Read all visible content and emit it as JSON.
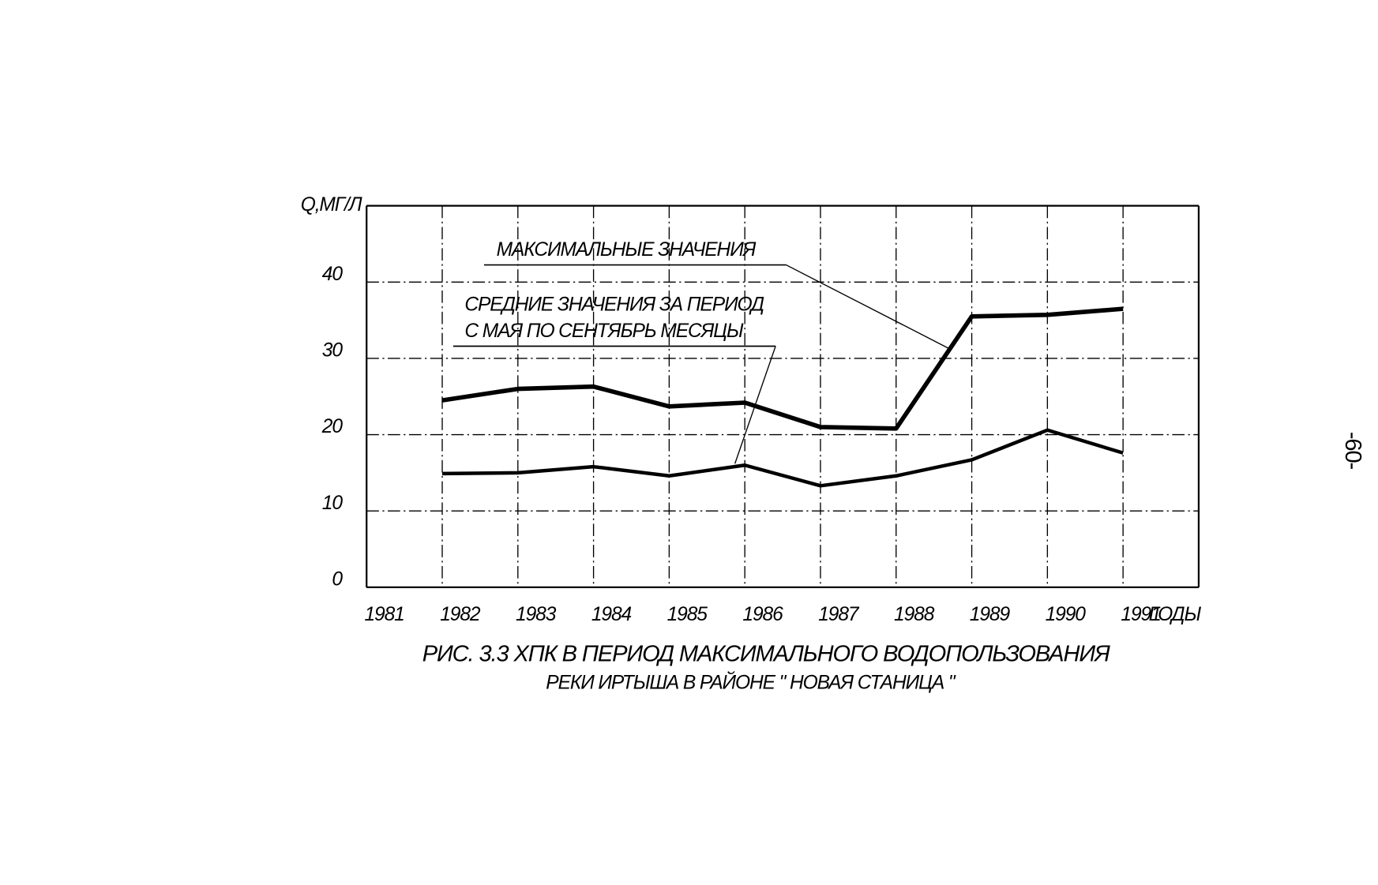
{
  "chart_data": {
    "type": "line",
    "y_label": "Q,МГ/Л",
    "x_label": "ГОДЫ",
    "x": [
      1982,
      1983,
      1984,
      1985,
      1986,
      1987,
      1988,
      1989,
      1990,
      1991
    ],
    "series": [
      {
        "label_lines": [
          "МАКСИМАЛЬНЫЕ ЗНАЧЕНИЯ"
        ],
        "color": "#000000",
        "values": [
          24.5,
          26,
          26.3,
          23.7,
          24.2,
          21,
          20.8,
          35.5,
          35.7,
          36.5
        ]
      },
      {
        "label_lines": [
          "СРЕДНИЕ ЗНАЧЕНИЯ ЗА ПЕРИОД",
          "С МАЯ ПО СЕНТЯБРЬ МЕСЯЦЫ"
        ],
        "color": "#000000",
        "values": [
          14.9,
          15,
          15.8,
          14.6,
          16,
          13.3,
          14.6,
          16.7,
          20.6,
          17.6
        ]
      }
    ],
    "xlim": [
      1981,
      1992
    ],
    "xticks": [
      1981,
      1982,
      1983,
      1984,
      1985,
      1986,
      1987,
      1988,
      1989,
      1990,
      1991
    ],
    "ylim": [
      0,
      50
    ],
    "yticks": [
      0,
      10,
      20,
      30,
      40
    ],
    "grid": true,
    "caption_lines": [
      "РИС. 3.3  ХПК В ПЕРИОД МАКСИМАЛЬНОГО ВОДОПОЛЬЗОВАНИЯ",
      "РЕКИ ИРТЫША В РАЙОНЕ \" НОВАЯ СТАНИЦА \""
    ]
  },
  "page_number": "-60-"
}
